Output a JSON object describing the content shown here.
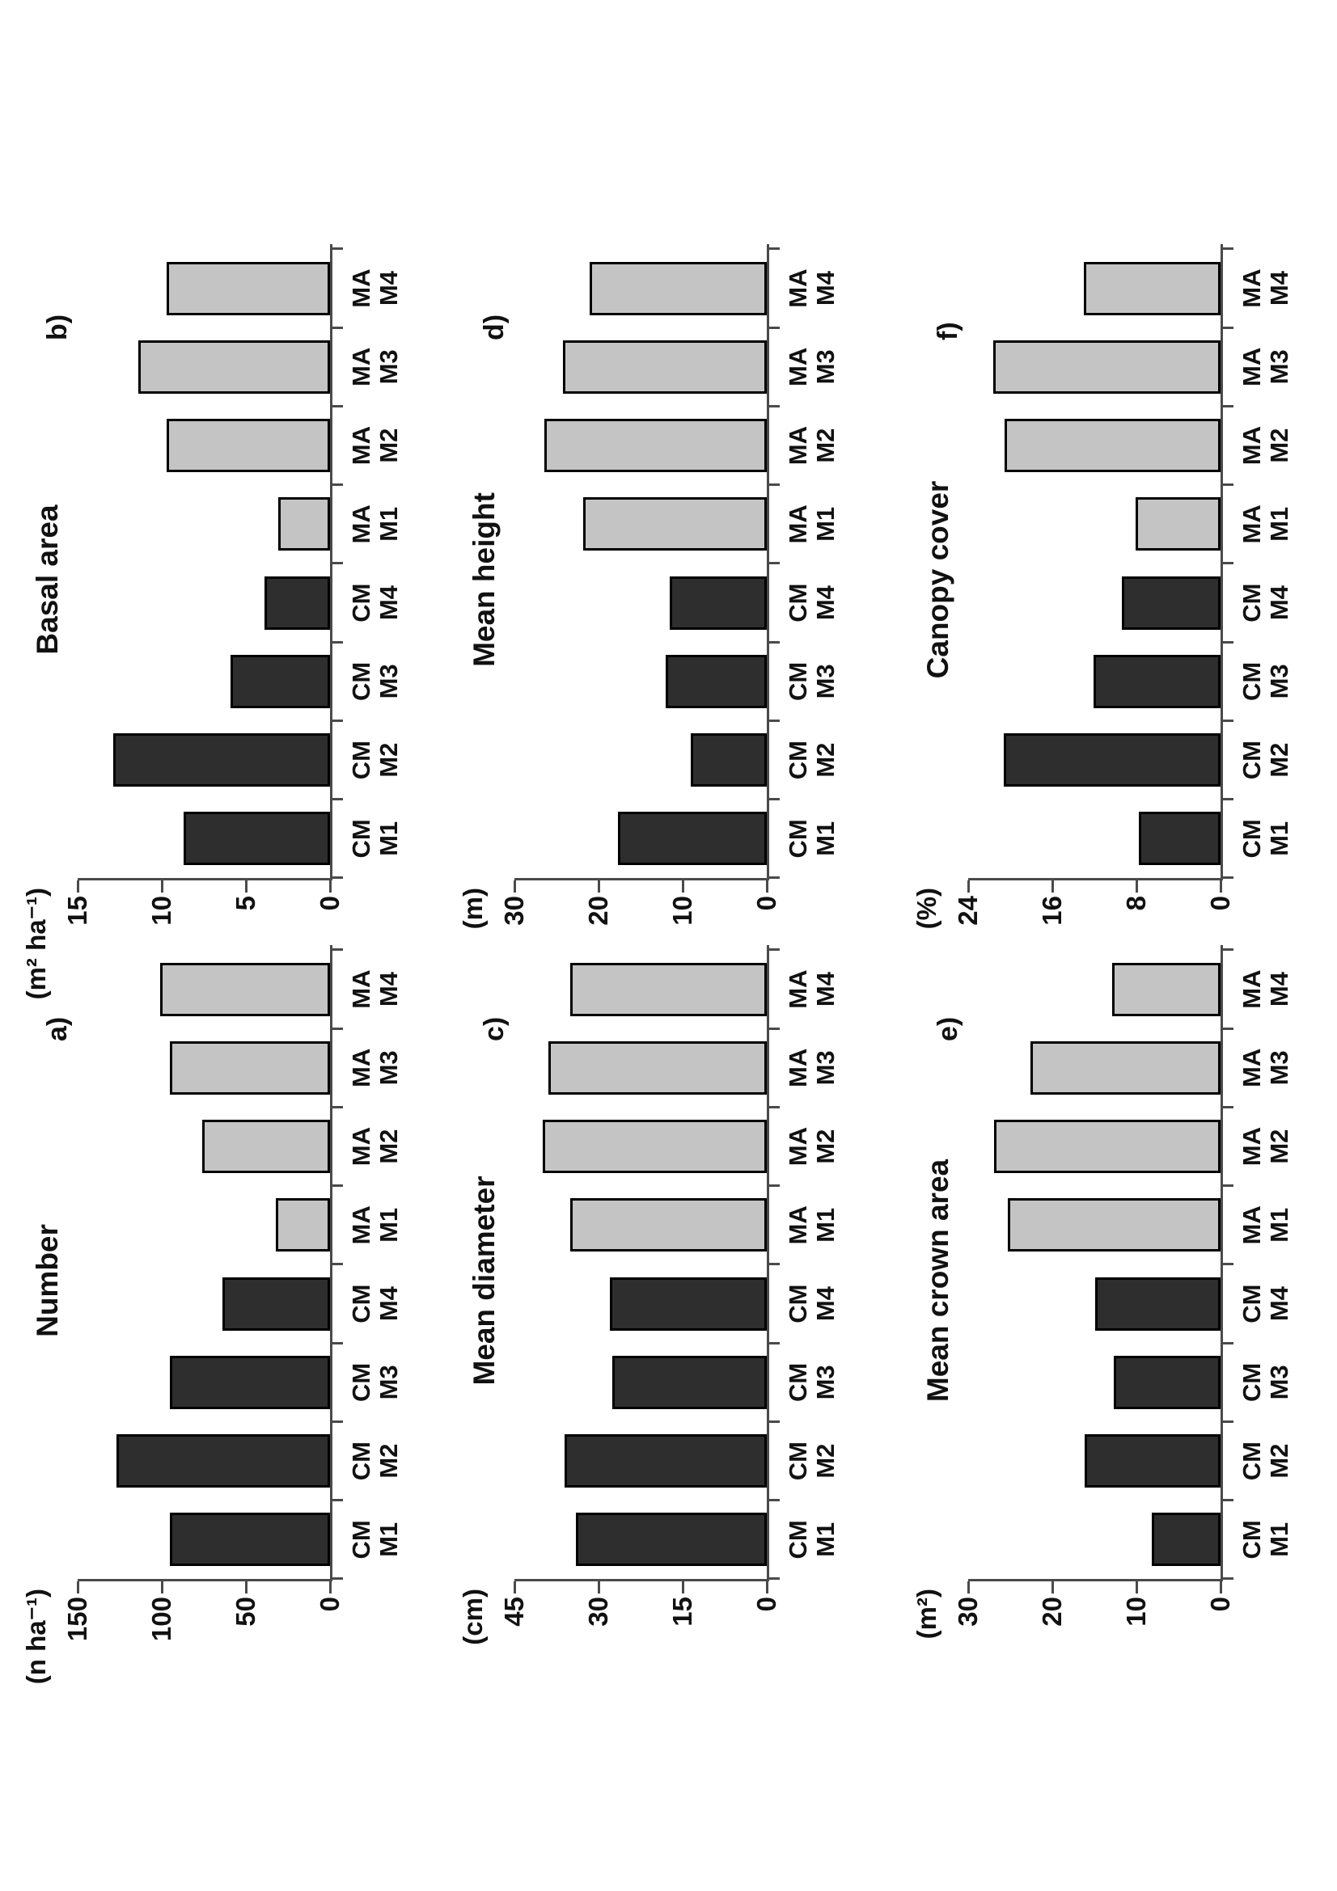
{
  "figure": {
    "description": "Six-panel bar chart figure rotated 90 degrees counter-clockwise on a portrait page",
    "group_dark_prefix": "CM",
    "group_light_prefix": "MA",
    "colors": {
      "bar_dark": "#2e2e2e",
      "bar_light": "#c4c4c4",
      "bar_border": "#000000",
      "axis": "#4a4a4a",
      "text": "#111111",
      "background": "#ffffff"
    }
  },
  "chart_data": [
    {
      "id": "a",
      "type": "bar",
      "letter": "a)",
      "title": "Number",
      "unit": "(n ha⁻¹)",
      "grid": {
        "row": 1,
        "col": 1
      },
      "categories": [
        "CM M1",
        "CM M2",
        "CM M3",
        "CM M4",
        "MA M1",
        "MA M2",
        "MA M3",
        "MA M4"
      ],
      "values": [
        95,
        127,
        95,
        64,
        32,
        76,
        95,
        101
      ],
      "ticks": [
        0,
        50,
        100,
        150
      ],
      "ylim": [
        0,
        150
      ],
      "xlabel": "",
      "ylabel": "(n ha⁻¹)",
      "grid_lines": "off",
      "legend": "none"
    },
    {
      "id": "b",
      "type": "bar",
      "letter": "b)",
      "title": "Basal area",
      "unit": "(m² ha⁻¹)",
      "grid": {
        "row": 1,
        "col": 2
      },
      "categories": [
        "CM M1",
        "CM M2",
        "CM M3",
        "CM M4",
        "MA M1",
        "MA M2",
        "MA M3",
        "MA M4"
      ],
      "values": [
        8.7,
        12.9,
        5.9,
        3.9,
        3.1,
        9.7,
        11.4,
        9.7
      ],
      "ticks": [
        0,
        5,
        10,
        15
      ],
      "ylim": [
        0,
        15
      ],
      "xlabel": "",
      "ylabel": "(m² ha⁻¹)",
      "grid_lines": "off",
      "legend": "none"
    },
    {
      "id": "c",
      "type": "bar",
      "letter": "c)",
      "title": "Mean diameter",
      "unit": "(cm)",
      "grid": {
        "row": 2,
        "col": 1
      },
      "categories": [
        "CM M1",
        "CM M2",
        "CM M3",
        "CM M4",
        "MA M1",
        "MA M2",
        "MA M3",
        "MA M4"
      ],
      "values": [
        34,
        36,
        27.5,
        28,
        35,
        40,
        39,
        35
      ],
      "ticks": [
        0,
        15,
        30,
        45
      ],
      "ylim": [
        0,
        45
      ],
      "xlabel": "",
      "ylabel": "(cm)",
      "grid_lines": "off",
      "legend": "none"
    },
    {
      "id": "d",
      "type": "bar",
      "letter": "d)",
      "title": "Mean height",
      "unit": "(m)",
      "grid": {
        "row": 2,
        "col": 2
      },
      "categories": [
        "CM M1",
        "CM M2",
        "CM M3",
        "CM M4",
        "MA M1",
        "MA M2",
        "MA M3",
        "MA M4"
      ],
      "values": [
        17.7,
        9,
        12,
        11.5,
        21.8,
        26.4,
        24.2,
        21.1
      ],
      "ticks": [
        0,
        10,
        20,
        30
      ],
      "ylim": [
        0,
        30
      ],
      "xlabel": "",
      "ylabel": "(m)",
      "grid_lines": "off",
      "legend": "none"
    },
    {
      "id": "e",
      "type": "bar",
      "letter": "e)",
      "title": "Mean crown area",
      "unit": "(m²)",
      "grid": {
        "row": 3,
        "col": 1
      },
      "categories": [
        "CM M1",
        "CM M2",
        "CM M3",
        "CM M4",
        "MA M1",
        "MA M2",
        "MA M3",
        "MA M4"
      ],
      "values": [
        8.2,
        16.2,
        12.7,
        14.9,
        25.3,
        26.9,
        22.6,
        12.9
      ],
      "ticks": [
        0,
        10,
        20,
        30
      ],
      "ylim": [
        0,
        30
      ],
      "xlabel": "",
      "ylabel": "(m²)",
      "grid_lines": "off",
      "legend": "none"
    },
    {
      "id": "f",
      "type": "bar",
      "letter": "f)",
      "title": "Canopy cover",
      "unit": "(%)",
      "grid": {
        "row": 3,
        "col": 2
      },
      "categories": [
        "CM M1",
        "CM M2",
        "CM M3",
        "CM M4",
        "MA M1",
        "MA M2",
        "MA M3",
        "MA M4"
      ],
      "values": [
        7.8,
        20.6,
        12.1,
        9.4,
        8.1,
        20.5,
        21.6,
        13
      ],
      "ticks": [
        0,
        8,
        16,
        24
      ],
      "ylim": [
        0,
        24
      ],
      "xlabel": "",
      "ylabel": "(%)",
      "grid_lines": "off",
      "legend": "none"
    }
  ]
}
